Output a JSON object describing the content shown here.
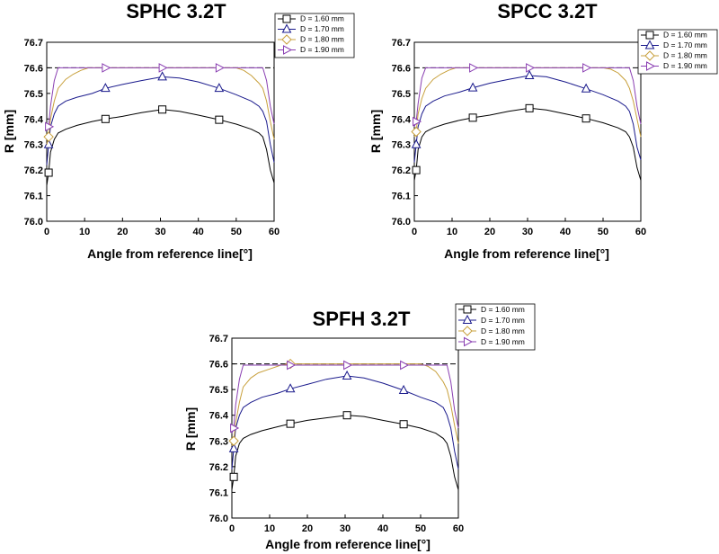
{
  "figure": {
    "charts": [
      {
        "title": "SPHC 3.2T",
        "xlabel": "Angle from reference line[°]",
        "ylabel": "R [mm]",
        "legend_position": "top-right",
        "legend_entries": [
          "D = 1.60 mm",
          "D = 1.70 mm",
          "D = 1.80 mm",
          "D = 1.90 mm"
        ]
      },
      {
        "title": "SPCC 3.2T",
        "xlabel": "Angle from reference line[°]",
        "ylabel": "R [mm]",
        "legend_position": "top-right",
        "legend_entries": [
          "D = 1.60 mm",
          "D = 1.70 mm",
          "D = 1.80 mm",
          "D = 1.90 mm"
        ]
      },
      {
        "title": "SPFH 3.2T",
        "xlabel": "Angle from reference line[°]",
        "ylabel": "R [mm]",
        "legend_position": "top-right",
        "legend_entries": [
          "D = 1.60 mm",
          "D = 1.70 mm",
          "D = 1.80 mm",
          "D = 1.90 mm"
        ]
      }
    ]
  },
  "chart_data": [
    {
      "type": "line",
      "title": "SPHC 3.2T",
      "xlabel": "Angle from reference line[°]",
      "ylabel": "R [mm]",
      "xlim": [
        0,
        60
      ],
      "ylim": [
        76.0,
        76.7
      ],
      "xticks": [
        "0",
        "10",
        "20",
        "30",
        "40",
        "50",
        "60"
      ],
      "yticks": [
        "76.0",
        "76.1",
        "76.2",
        "76.3",
        "76.4",
        "76.5",
        "76.6",
        "76.7"
      ],
      "reference_line": 76.6,
      "grid": false,
      "legend": "top-right",
      "series": [
        {
          "name": "D = 1.60 mm",
          "color": "#000000",
          "marker": "square",
          "marker_x": [
            0.5,
            15.5,
            30.5,
            45.5
          ],
          "x": [
            0,
            0.5,
            1,
            2,
            3,
            5,
            8,
            12,
            15.5,
            20,
            25,
            30.5,
            35,
            40,
            45.5,
            50,
            54,
            56,
            57,
            58,
            59,
            60
          ],
          "y": [
            76.14,
            76.19,
            76.27,
            76.32,
            76.345,
            76.36,
            76.375,
            76.39,
            76.4,
            76.41,
            76.425,
            76.437,
            76.43,
            76.415,
            76.397,
            76.38,
            76.36,
            76.345,
            76.33,
            76.28,
            76.2,
            76.15
          ]
        },
        {
          "name": "D = 1.70 mm",
          "color": "#1a1a8c",
          "marker": "triangle-up",
          "marker_x": [
            0.5,
            15.5,
            30.5,
            45.5
          ],
          "x": [
            0,
            0.5,
            1,
            2,
            3,
            5,
            8,
            12,
            15.5,
            20,
            25,
            30.5,
            35,
            40,
            45.5,
            50,
            54,
            56,
            57,
            58,
            59,
            60
          ],
          "y": [
            76.22,
            76.3,
            76.37,
            76.42,
            76.45,
            76.47,
            76.485,
            76.5,
            76.52,
            76.535,
            76.55,
            76.565,
            76.56,
            76.545,
            76.52,
            76.495,
            76.47,
            76.45,
            76.43,
            76.39,
            76.3,
            76.23
          ]
        },
        {
          "name": "D = 1.80 mm",
          "color": "#c8a03c",
          "marker": "diamond",
          "marker_x": [
            0.5
          ],
          "x": [
            0,
            0.5,
            1,
            2,
            3,
            5,
            7,
            9,
            11,
            15.5,
            30.5,
            45.5,
            50,
            52,
            54,
            56,
            57,
            58,
            59,
            60
          ],
          "y": [
            76.3,
            76.33,
            76.4,
            76.47,
            76.52,
            76.555,
            76.575,
            76.59,
            76.6,
            76.6,
            76.6,
            76.6,
            76.6,
            76.59,
            76.57,
            76.54,
            76.52,
            76.47,
            76.39,
            76.32
          ]
        },
        {
          "name": "D = 1.90 mm",
          "color": "#8a3fb2",
          "marker": "triangle-right",
          "marker_x": [
            0.5,
            15.5,
            30.5,
            45.5
          ],
          "x": [
            0,
            0.5,
            1,
            2,
            3,
            15.5,
            30.5,
            45.5,
            57,
            58,
            59,
            60
          ],
          "y": [
            76.36,
            76.37,
            76.45,
            76.55,
            76.6,
            76.6,
            76.6,
            76.6,
            76.6,
            76.55,
            76.45,
            76.38
          ]
        }
      ]
    },
    {
      "type": "line",
      "title": "SPCC 3.2T",
      "xlabel": "Angle from reference line[°]",
      "ylabel": "R [mm]",
      "xlim": [
        0,
        60
      ],
      "ylim": [
        76.0,
        76.7
      ],
      "xticks": [
        "0",
        "10",
        "20",
        "30",
        "40",
        "50",
        "60"
      ],
      "yticks": [
        "76.0",
        "76.1",
        "76.2",
        "76.3",
        "76.4",
        "76.5",
        "76.6",
        "76.7"
      ],
      "reference_line": 76.6,
      "grid": false,
      "legend": "top-right",
      "series": [
        {
          "name": "D = 1.60 mm",
          "color": "#000000",
          "marker": "square",
          "marker_x": [
            0.5,
            15.5,
            30.5,
            45.5
          ],
          "x": [
            0,
            0.5,
            1,
            2,
            3,
            5,
            8,
            12,
            15.5,
            20,
            25,
            30.5,
            35,
            40,
            45.5,
            50,
            54,
            56,
            57,
            58,
            59,
            60
          ],
          "y": [
            76.16,
            76.2,
            76.28,
            76.33,
            76.35,
            76.365,
            76.38,
            76.395,
            76.405,
            76.415,
            76.43,
            76.442,
            76.435,
            76.42,
            76.402,
            76.385,
            76.365,
            76.35,
            76.33,
            76.29,
            76.21,
            76.16
          ]
        },
        {
          "name": "D = 1.70 mm",
          "color": "#1a1a8c",
          "marker": "triangle-up",
          "marker_x": [
            0.5,
            15.5,
            30.5,
            45.5
          ],
          "x": [
            0,
            0.5,
            1,
            2,
            3,
            5,
            8,
            12,
            15.5,
            20,
            25,
            30.5,
            35,
            40,
            45.5,
            50,
            54,
            56,
            57,
            58,
            59,
            60
          ],
          "y": [
            76.23,
            76.3,
            76.37,
            76.42,
            76.45,
            76.47,
            76.49,
            76.505,
            76.522,
            76.54,
            76.555,
            76.57,
            76.565,
            76.545,
            76.518,
            76.495,
            76.47,
            76.45,
            76.43,
            76.38,
            76.29,
            76.24
          ]
        },
        {
          "name": "D = 1.80 mm",
          "color": "#c8a03c",
          "marker": "diamond",
          "marker_x": [
            0.5
          ],
          "x": [
            0,
            0.5,
            1,
            2,
            3,
            5,
            7,
            9,
            11,
            15.5,
            30.5,
            45.5,
            50,
            52,
            54,
            56,
            57,
            58,
            59,
            60
          ],
          "y": [
            76.33,
            76.35,
            76.42,
            76.48,
            76.52,
            76.555,
            76.575,
            76.59,
            76.6,
            76.6,
            76.6,
            76.6,
            76.6,
            76.595,
            76.58,
            76.55,
            76.52,
            76.47,
            76.4,
            76.33
          ]
        },
        {
          "name": "D = 1.90 mm",
          "color": "#8a3fb2",
          "marker": "triangle-right",
          "marker_x": [
            0.5,
            15.5,
            30.5,
            45.5
          ],
          "x": [
            0,
            0.5,
            1,
            2,
            3,
            15.5,
            30.5,
            45.5,
            57,
            58,
            59,
            60
          ],
          "y": [
            76.37,
            76.39,
            76.46,
            76.56,
            76.6,
            76.6,
            76.6,
            76.6,
            76.6,
            76.55,
            76.45,
            76.38
          ]
        }
      ]
    },
    {
      "type": "line",
      "title": "SPFH 3.2T",
      "xlabel": "Angle from reference line[°]",
      "ylabel": "R [mm]",
      "xlim": [
        0,
        60
      ],
      "ylim": [
        76.0,
        76.7
      ],
      "xticks": [
        "0",
        "10",
        "20",
        "30",
        "40",
        "50",
        "60"
      ],
      "yticks": [
        "76.0",
        "76.1",
        "76.2",
        "76.3",
        "76.4",
        "76.5",
        "76.6",
        "76.7"
      ],
      "reference_line": 76.6,
      "grid": false,
      "legend": "top-right",
      "series": [
        {
          "name": "D = 1.60 mm",
          "color": "#000000",
          "marker": "square",
          "marker_x": [
            0.5,
            15.5,
            30.5,
            45.5
          ],
          "x": [
            0,
            0.5,
            1,
            2,
            3,
            5,
            8,
            12,
            15.5,
            20,
            25,
            30.5,
            35,
            40,
            45.5,
            50,
            54,
            56,
            57,
            58,
            59,
            60
          ],
          "y": [
            76.11,
            76.16,
            76.24,
            76.29,
            76.31,
            76.325,
            76.34,
            76.355,
            76.367,
            76.38,
            76.39,
            76.4,
            76.395,
            76.38,
            76.365,
            76.35,
            76.33,
            76.31,
            76.29,
            76.24,
            76.16,
            76.11
          ]
        },
        {
          "name": "D = 1.70 mm",
          "color": "#1a1a8c",
          "marker": "triangle-up",
          "marker_x": [
            0.5,
            15.5,
            30.5,
            45.5
          ],
          "x": [
            0,
            0.5,
            1,
            2,
            3,
            5,
            8,
            12,
            15.5,
            20,
            25,
            30.5,
            35,
            40,
            45.5,
            50,
            54,
            56,
            57,
            58,
            59,
            60
          ],
          "y": [
            76.19,
            76.27,
            76.35,
            76.4,
            76.43,
            76.45,
            76.47,
            76.485,
            76.503,
            76.52,
            76.54,
            76.553,
            76.545,
            76.525,
            76.497,
            76.47,
            76.45,
            76.43,
            76.4,
            76.35,
            76.26,
            76.19
          ]
        },
        {
          "name": "D = 1.80 mm",
          "color": "#c8a03c",
          "marker": "diamond",
          "marker_x": [
            0.5,
            15.5
          ],
          "x": [
            0,
            0.5,
            1,
            2,
            3,
            5,
            7,
            10,
            13,
            15.5,
            30.5,
            45.5,
            50,
            52,
            54,
            56,
            57,
            58,
            59,
            60
          ],
          "y": [
            76.28,
            76.3,
            76.37,
            76.45,
            76.51,
            76.545,
            76.565,
            76.58,
            76.595,
            76.6,
            76.6,
            76.6,
            76.6,
            76.59,
            76.57,
            76.53,
            76.5,
            76.44,
            76.36,
            76.29
          ]
        },
        {
          "name": "D = 1.90 mm",
          "color": "#8a3fb2",
          "marker": "triangle-right",
          "marker_x": [
            0.5,
            15.5,
            30.5,
            45.5
          ],
          "x": [
            0,
            0.5,
            1,
            2,
            3,
            15.5,
            30.5,
            45.5,
            57,
            58,
            59,
            60
          ],
          "y": [
            76.33,
            76.35,
            76.44,
            76.54,
            76.595,
            76.595,
            76.595,
            76.595,
            76.595,
            76.53,
            76.42,
            76.35
          ]
        }
      ]
    }
  ]
}
